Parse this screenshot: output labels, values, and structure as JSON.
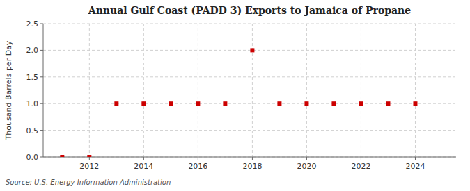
{
  "chart_data": {
    "type": "scatter",
    "title": "Annual Gulf Coast (PADD 3) Exports to Jamaica of Propane",
    "ylabel": "Thousand Barrels per Day",
    "annotation": "Source: U.S. Energy Information Administration",
    "x": [
      2011,
      2012,
      2013,
      2014,
      2015,
      2016,
      2017,
      2018,
      2019,
      2020,
      2021,
      2022,
      2023,
      2024
    ],
    "values": [
      0.0,
      0.0,
      1.0,
      1.0,
      1.0,
      1.0,
      1.0,
      2.0,
      1.0,
      1.0,
      1.0,
      1.0,
      1.0,
      1.0
    ],
    "xlim": [
      2010.3,
      2025.5
    ],
    "ylim": [
      0.0,
      2.5
    ],
    "xticks": [
      2012,
      2014,
      2016,
      2018,
      2020,
      2022,
      2024
    ],
    "yticks": [
      {
        "value": 0.0,
        "label": "0.0"
      },
      0.5,
      {
        "value": 1.0,
        "label": "1.0"
      },
      1.5,
      {
        "value": 2.0,
        "label": "2.0"
      },
      2.5
    ],
    "color": "#cc0000",
    "marker": "square",
    "grid": true
  }
}
